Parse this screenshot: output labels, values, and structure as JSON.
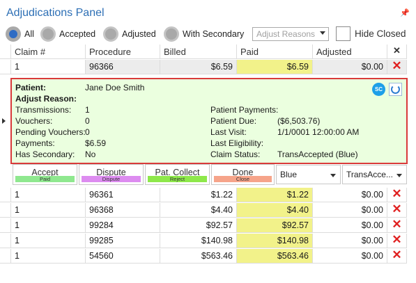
{
  "panel": {
    "title": "Adjudications Panel",
    "pin_icon": "pin-icon"
  },
  "filters": {
    "radios": [
      {
        "label": "All",
        "checked": true
      },
      {
        "label": "Accepted",
        "checked": false
      },
      {
        "label": "Adjusted",
        "checked": false
      },
      {
        "label": "With Secondary",
        "checked": false
      }
    ],
    "adjust_reasons_placeholder": "Adjust Reasons",
    "hide_closed_label": "Hide Closed"
  },
  "grid": {
    "columns": [
      "Claim #",
      "Procedure",
      "Billed",
      "Paid",
      "Adjusted"
    ],
    "selected_row": {
      "claim": "1",
      "procedure": "96366",
      "billed": "$6.59",
      "paid": "$6.59",
      "adjusted": "$0.00"
    },
    "rows": [
      {
        "claim": "1",
        "procedure": "96361",
        "billed": "$1.22",
        "paid": "$1.22",
        "adjusted": "$0.00"
      },
      {
        "claim": "1",
        "procedure": "96368",
        "billed": "$4.40",
        "paid": "$4.40",
        "adjusted": "$0.00"
      },
      {
        "claim": "1",
        "procedure": "99284",
        "billed": "$92.57",
        "paid": "$92.57",
        "adjusted": "$0.00"
      },
      {
        "claim": "1",
        "procedure": "99285",
        "billed": "$140.98",
        "paid": "$140.98",
        "adjusted": "$0.00"
      },
      {
        "claim": "1",
        "procedure": "54560",
        "billed": "$563.46",
        "paid": "$563.46",
        "adjusted": "$0.00"
      }
    ]
  },
  "detail": {
    "patient_label": "Patient:",
    "patient_name": "Jane Doe Smith",
    "adjust_reason_label": "Adjust Reason:",
    "sc_badge": "SC",
    "left": [
      {
        "label": "Transmissions:",
        "value": "1"
      },
      {
        "label": "Vouchers:",
        "value": "0"
      },
      {
        "label": "Pending Vouchers:",
        "value": "0"
      },
      {
        "label": "Payments:",
        "value": "$6.59"
      },
      {
        "label": "Has Secondary:",
        "value": "No"
      }
    ],
    "right": [
      {
        "label": "Patient Payments:",
        "value": ""
      },
      {
        "label": "Patient Due:",
        "value": "($6,503.76)"
      },
      {
        "label": "Last Visit:",
        "value": "1/1/0001 12:00:00 AM"
      },
      {
        "label": "Last Eligibility:",
        "value": ""
      },
      {
        "label": "Claim Status:",
        "value": "TransAccepted  (Blue)"
      }
    ]
  },
  "actions": {
    "buttons": [
      {
        "label": "Accept",
        "strip": "Paid",
        "color": "#8fe88f"
      },
      {
        "label": "Dispute",
        "strip": "Dispute",
        "color": "#dd8cf0"
      },
      {
        "label": "Pat. Collect",
        "strip": "Reject",
        "color": "#8ee84a"
      },
      {
        "label": "Done",
        "strip": "Close",
        "color": "#f6a48a"
      }
    ],
    "color_select": "Blue",
    "status_select": "TransAcce..."
  },
  "colors": {
    "accent": "#2d6fb5",
    "paid_highlight": "#f2f28a",
    "detail_bg": "#ebffdf",
    "detail_border": "#d93a3a",
    "delete": "#e02020"
  }
}
